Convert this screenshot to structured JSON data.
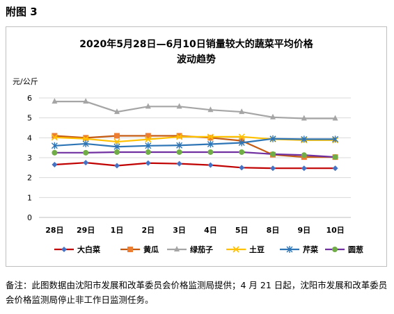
{
  "page": {
    "heading": "附图 3",
    "note": "备注：此图数据由沈阳市发展和改革委员会价格监测局提供；4 月 21 日起，沈阳市发展和改革委员会价格监测局停止非工作日监测任务。"
  },
  "chart_data": {
    "type": "line",
    "title_line1": "2020年5月28日—6月10日销量较大的蔬菜平均价格",
    "title_line2": "波动趋势",
    "ylabel": "元/公斤",
    "xlabel": "",
    "ylim": [
      0,
      6
    ],
    "yticks": [
      "0",
      "1",
      "2",
      "3",
      "4",
      "5",
      "6"
    ],
    "grid": true,
    "legend_position": "bottom",
    "categories": [
      "28日",
      "29日",
      "1日",
      "2日",
      "3日",
      "4日",
      "5日",
      "8日",
      "9日",
      "10日"
    ],
    "series": [
      {
        "name": "大白菜",
        "color": "#c00000",
        "marker": "diamond",
        "marker_color": "#4472c4",
        "values": [
          2.65,
          2.75,
          2.6,
          2.73,
          2.7,
          2.63,
          2.5,
          2.47,
          2.47,
          2.47
        ]
      },
      {
        "name": "黄瓜",
        "color": "#c55a11",
        "marker": "square",
        "marker_color": "#ed7d31",
        "values": [
          4.1,
          4.0,
          4.1,
          4.1,
          4.1,
          4.0,
          3.85,
          3.15,
          3.03,
          3.03
        ]
      },
      {
        "name": "绿茄子",
        "color": "#a5a5a5",
        "marker": "triangle",
        "marker_color": "#a5a5a5",
        "values": [
          5.82,
          5.82,
          5.3,
          5.57,
          5.57,
          5.4,
          5.3,
          5.03,
          4.97,
          4.97
        ]
      },
      {
        "name": "土豆",
        "color": "#ffc000",
        "marker": "x",
        "marker_color": "#ffc000",
        "values": [
          4.02,
          3.95,
          3.8,
          3.92,
          4.05,
          4.05,
          4.05,
          3.93,
          3.88,
          3.88
        ]
      },
      {
        "name": "芹菜",
        "color": "#2e75b6",
        "marker": "star",
        "marker_color": "#2e75b6",
        "values": [
          3.6,
          3.7,
          3.55,
          3.6,
          3.62,
          3.68,
          3.75,
          3.95,
          3.93,
          3.93
        ]
      },
      {
        "name": "圆葱",
        "color": "#7030a0",
        "marker": "circle",
        "marker_color": "#70ad47",
        "values": [
          3.25,
          3.25,
          3.28,
          3.28,
          3.28,
          3.28,
          3.28,
          3.18,
          3.13,
          3.03
        ]
      }
    ]
  }
}
